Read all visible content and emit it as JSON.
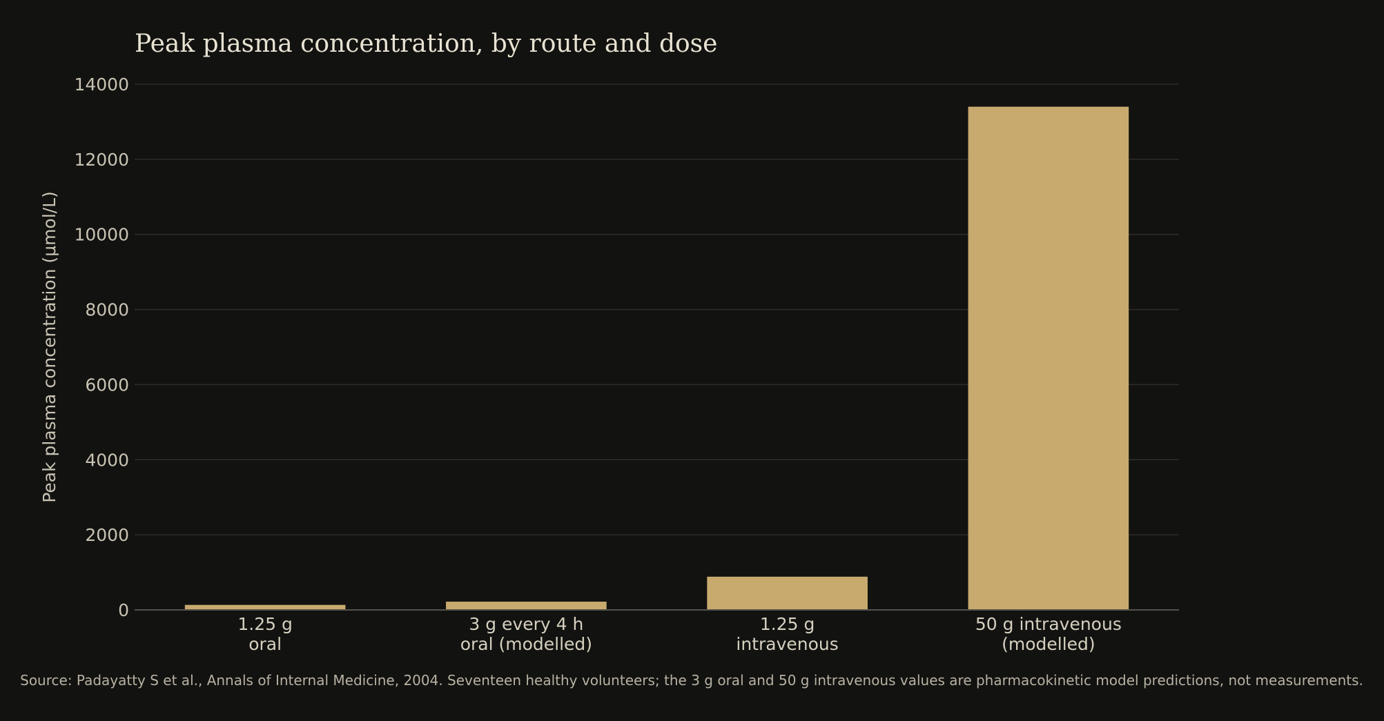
{
  "chart_data": {
    "type": "bar",
    "title": "Peak plasma concentration, by route and dose",
    "ylabel": "Peak plasma concentration (μmol/L)",
    "xlabel": "",
    "categories": [
      [
        "1.25 g",
        "oral"
      ],
      [
        "3 g every 4 h",
        "oral (modelled)"
      ],
      [
        "1.25 g",
        "intravenous"
      ],
      [
        "50 g intravenous",
        "(modelled)"
      ]
    ],
    "values": [
      134,
      220,
      885,
      13400
    ],
    "ylim": [
      0,
      14000
    ],
    "yticks": [
      0,
      2000,
      4000,
      6000,
      8000,
      10000,
      12000,
      14000
    ],
    "grid": "horizontal",
    "legend": "none",
    "colors": {
      "background": "#121210",
      "bar": "#c8aa6e"
    }
  },
  "source": "Source: Padayatty S et al., Annals of Internal Medicine, 2004. Seventeen healthy volunteers; the 3 g oral and 50 g intravenous values are pharmacokinetic model predictions, not measurements."
}
